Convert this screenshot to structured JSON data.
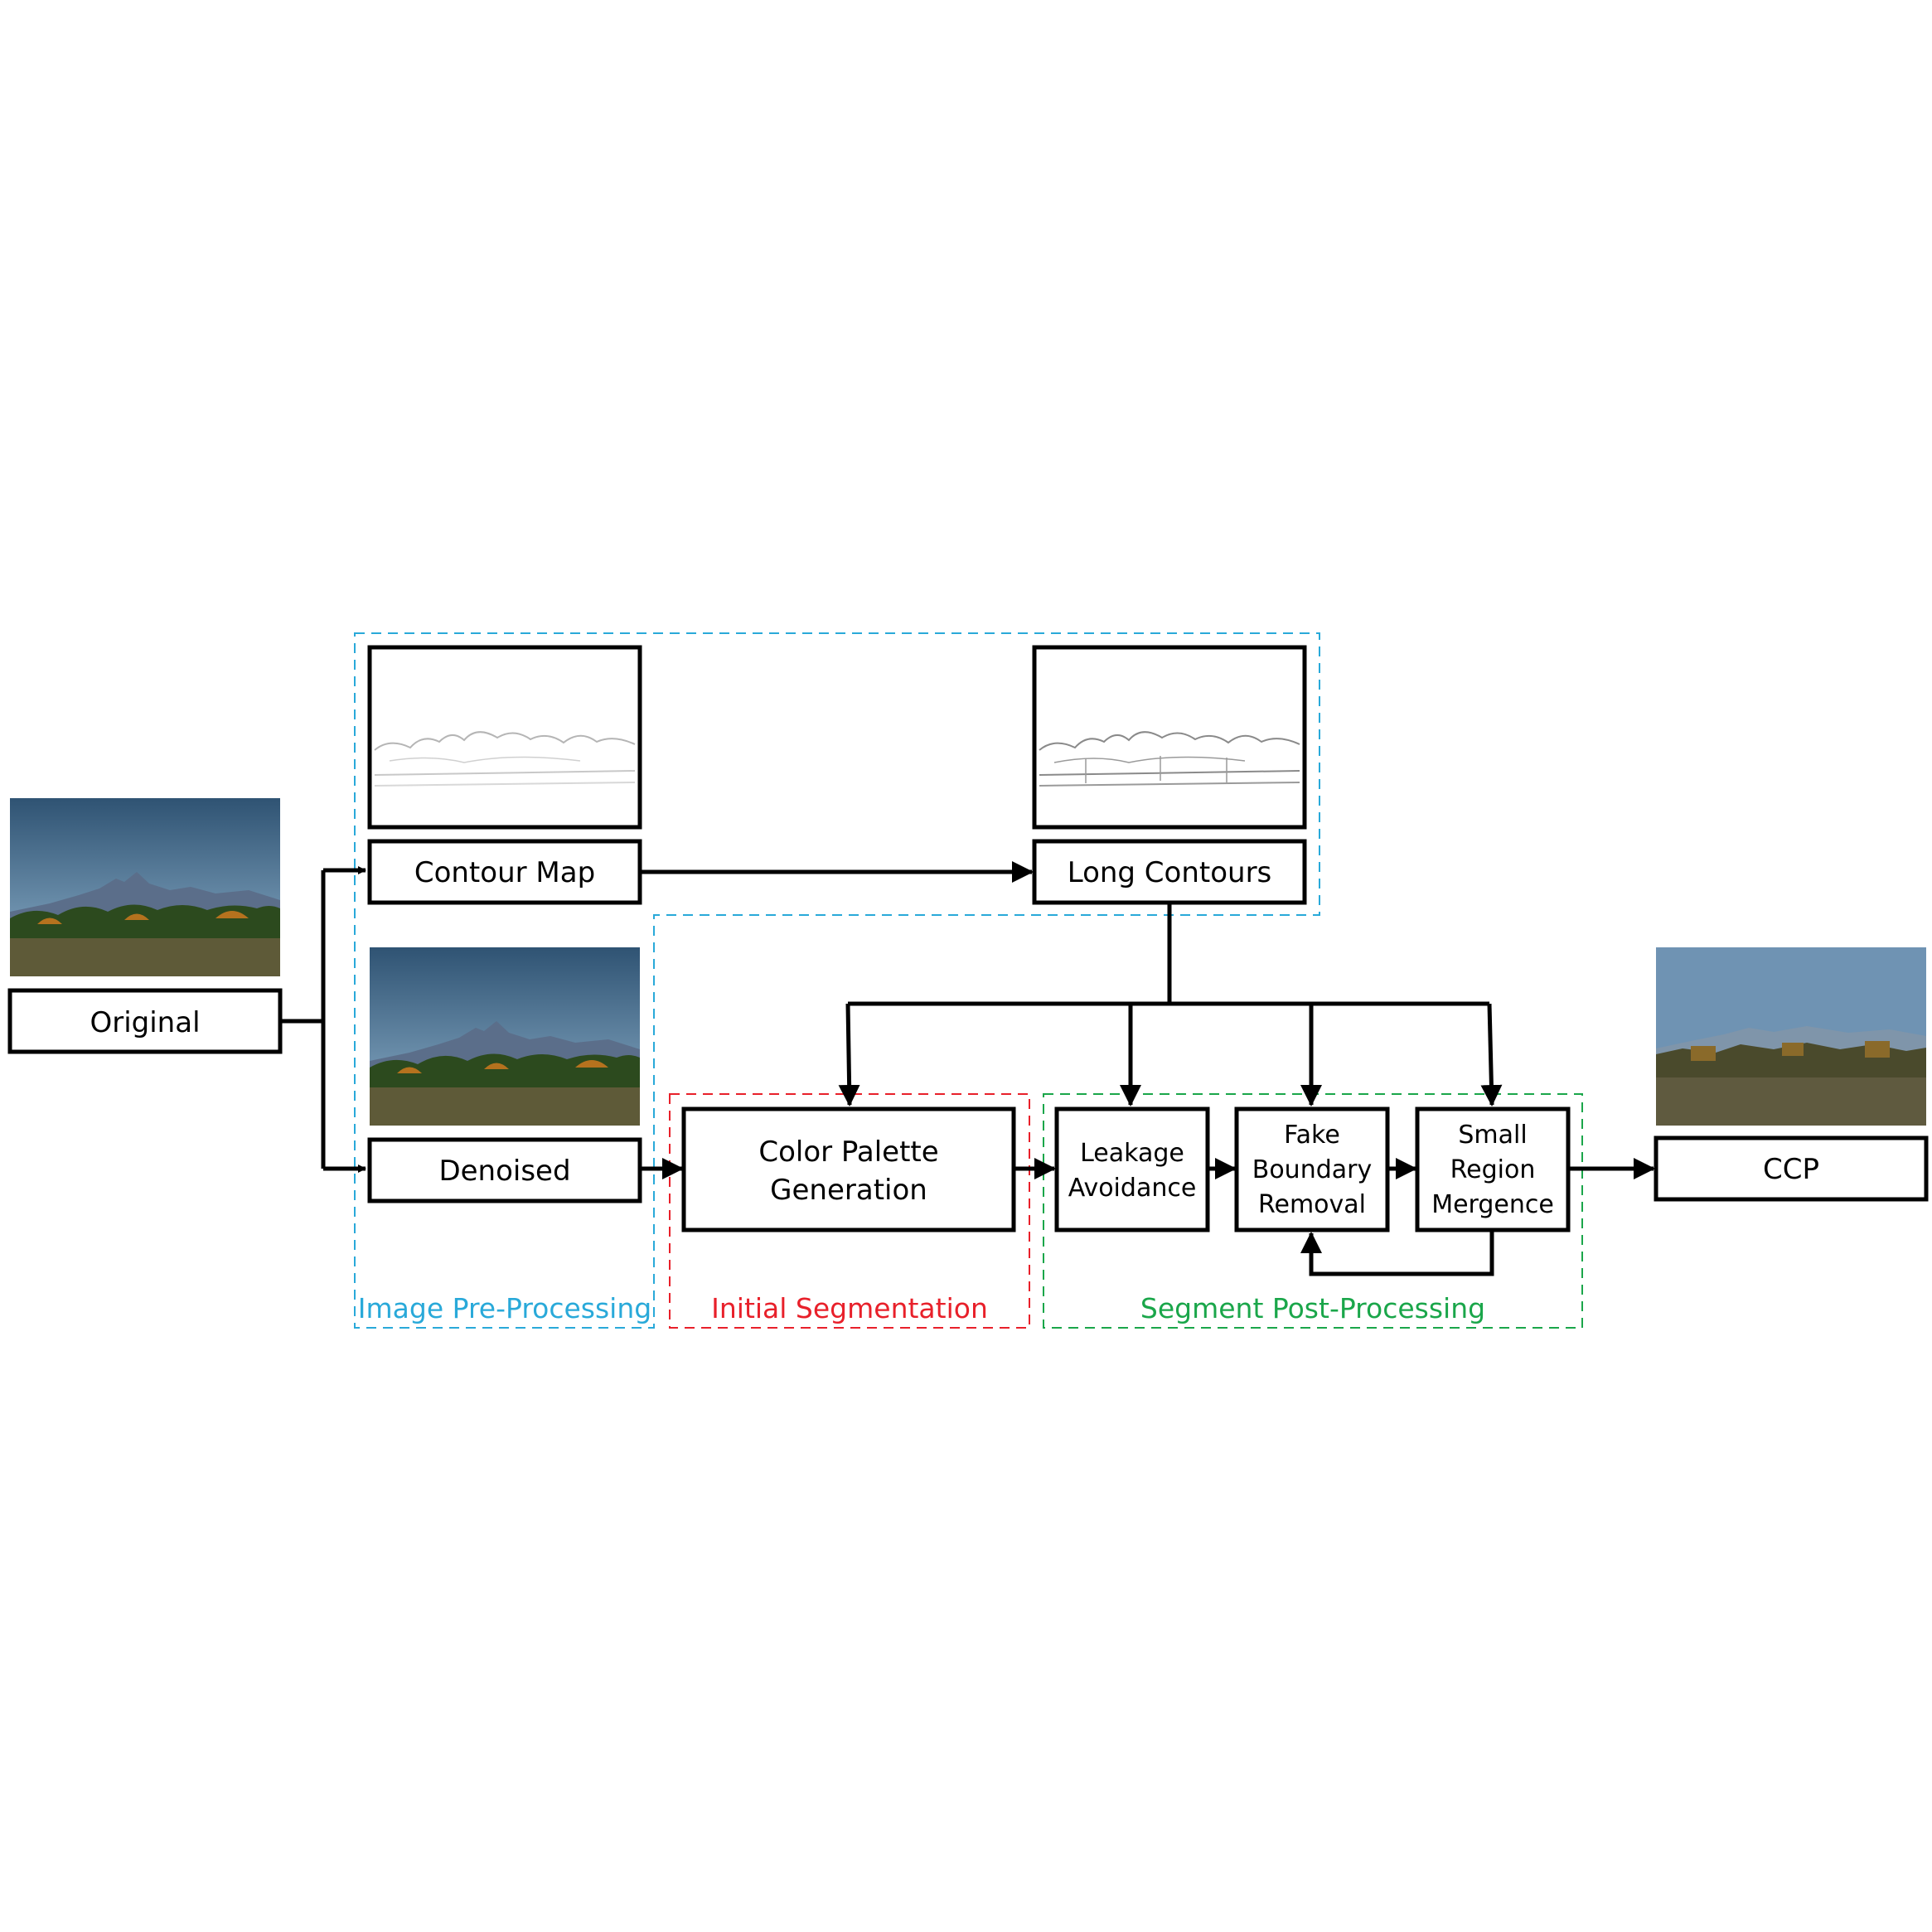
{
  "nodes": {
    "original": "Original",
    "contour_map": "Contour Map",
    "long_contours": "Long Contours",
    "denoised": "Denoised",
    "color_palette": [
      "Color Palette",
      "Generation"
    ],
    "leakage": [
      "Leakage",
      "Avoidance"
    ],
    "fake_boundary": [
      "Fake",
      "Boundary",
      "Removal"
    ],
    "small_region": [
      "Small",
      "Region",
      "Mergence"
    ],
    "ccp": "CCP"
  },
  "groups": {
    "preprocessing": "Image Pre-Processing",
    "initial_segmentation": "Initial Segmentation",
    "postprocessing": "Segment Post-Processing"
  },
  "colors": {
    "preprocessing": "#29a9d9",
    "initial_segmentation": "#e8202a",
    "postprocessing": "#1aa64a",
    "sky_top": "#2f5373",
    "sky_bottom": "#7fa6c4",
    "mountain": "#5b6e8a",
    "trees_green": "#2c4a1e",
    "trees_orange": "#b5721e",
    "grass": "#5e5a38",
    "ccp_sky": "#6f93b3",
    "ccp_ground": "#5f5a3f"
  }
}
